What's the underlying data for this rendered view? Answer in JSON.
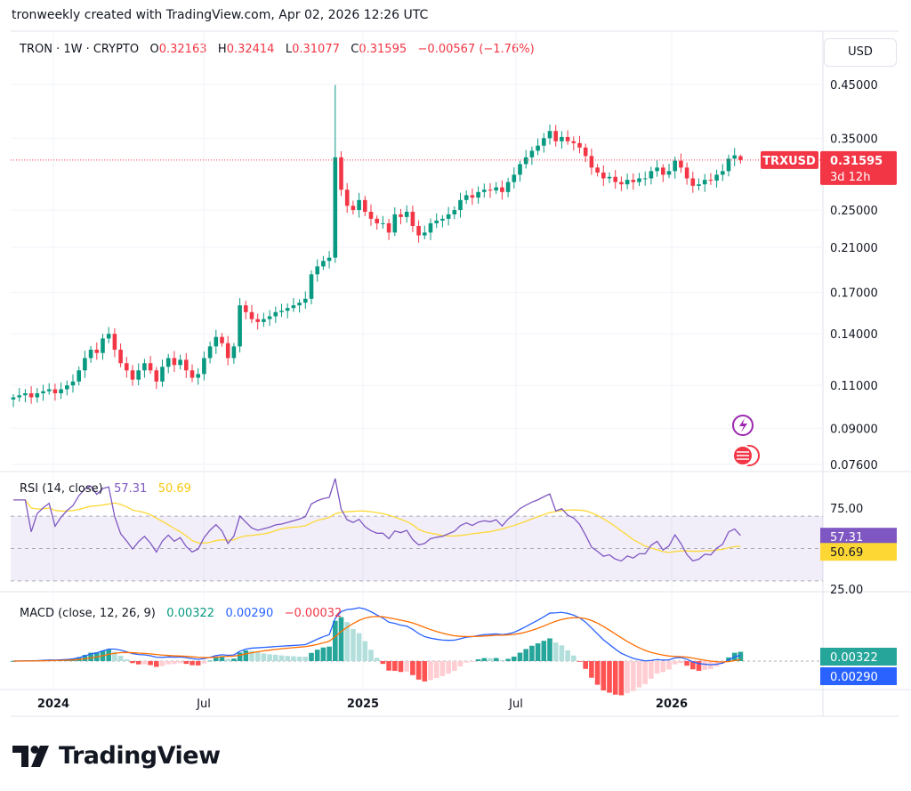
{
  "header": {
    "title": "tronweekly created with TradingView.com, Apr 02, 2026 12:26 UTC"
  },
  "legend": {
    "symbol": "TRON · 1W · CRYPTO",
    "o_label": "O",
    "o": "0.32163",
    "h_label": "H",
    "h": "0.32414",
    "l_label": "L",
    "l": "0.31077",
    "c_label": "C",
    "c": "0.31595",
    "change": "−0.00567 (−1.76%)"
  },
  "currency_button": "USD",
  "price_tag": {
    "symbol": "TRXUSD",
    "price": "0.31595",
    "countdown": "3d 12h"
  },
  "rsi": {
    "label": "RSI (14, close)",
    "value": "57.31",
    "ma": "50.69",
    "axis": [
      "75.00",
      "25.00"
    ],
    "line_color": "#7e57c2",
    "ma_color": "#fdd835"
  },
  "macd": {
    "label": "MACD (close, 12, 26, 9)",
    "macd": "0.00322",
    "signal": "0.00290",
    "hist": "−0.00032",
    "macd_color": "#2962ff",
    "signal_color": "#ff6d00"
  },
  "logo": "TradingView",
  "colors": {
    "up": "#089981",
    "down": "#f23645"
  },
  "chart_data": {
    "type": "candlestick",
    "scale": "log",
    "yticks": [
      "0.45000",
      "0.35000",
      "0.25000",
      "0.21000",
      "0.17000",
      "0.14000",
      "0.11000",
      "0.09000",
      "0.07600"
    ],
    "xticks": [
      "2024",
      "Jul",
      "2025",
      "Jul",
      "2026"
    ],
    "ylim": [
      0.073,
      0.52
    ],
    "weekly_close": [
      0.104,
      0.105,
      0.106,
      0.104,
      0.106,
      0.107,
      0.108,
      0.106,
      0.108,
      0.11,
      0.112,
      0.118,
      0.125,
      0.13,
      0.128,
      0.137,
      0.14,
      0.13,
      0.122,
      0.118,
      0.113,
      0.118,
      0.122,
      0.118,
      0.112,
      0.12,
      0.125,
      0.121,
      0.124,
      0.118,
      0.114,
      0.116,
      0.125,
      0.132,
      0.138,
      0.134,
      0.125,
      0.132,
      0.16,
      0.155,
      0.15,
      0.148,
      0.15,
      0.152,
      0.155,
      0.156,
      0.158,
      0.16,
      0.162,
      0.165,
      0.185,
      0.192,
      0.197,
      0.2,
      0.32,
      0.275,
      0.255,
      0.25,
      0.262,
      0.248,
      0.24,
      0.235,
      0.235,
      0.225,
      0.245,
      0.242,
      0.248,
      0.232,
      0.222,
      0.225,
      0.235,
      0.238,
      0.24,
      0.245,
      0.25,
      0.262,
      0.268,
      0.265,
      0.272,
      0.275,
      0.274,
      0.278,
      0.272,
      0.285,
      0.295,
      0.31,
      0.32,
      0.33,
      0.338,
      0.35,
      0.362,
      0.345,
      0.352,
      0.345,
      0.342,
      0.335,
      0.322,
      0.305,
      0.298,
      0.29,
      0.292,
      0.285,
      0.282,
      0.288,
      0.285,
      0.29,
      0.29,
      0.3,
      0.305,
      0.295,
      0.3,
      0.315,
      0.305,
      0.29,
      0.28,
      0.282,
      0.288,
      0.287,
      0.295,
      0.3,
      0.318,
      0.323,
      0.316
    ],
    "notable_high": {
      "week_index": 54,
      "value": 0.449
    },
    "last": {
      "open": 0.32163,
      "high": 0.32414,
      "low": 0.31077,
      "close": 0.31595
    }
  }
}
